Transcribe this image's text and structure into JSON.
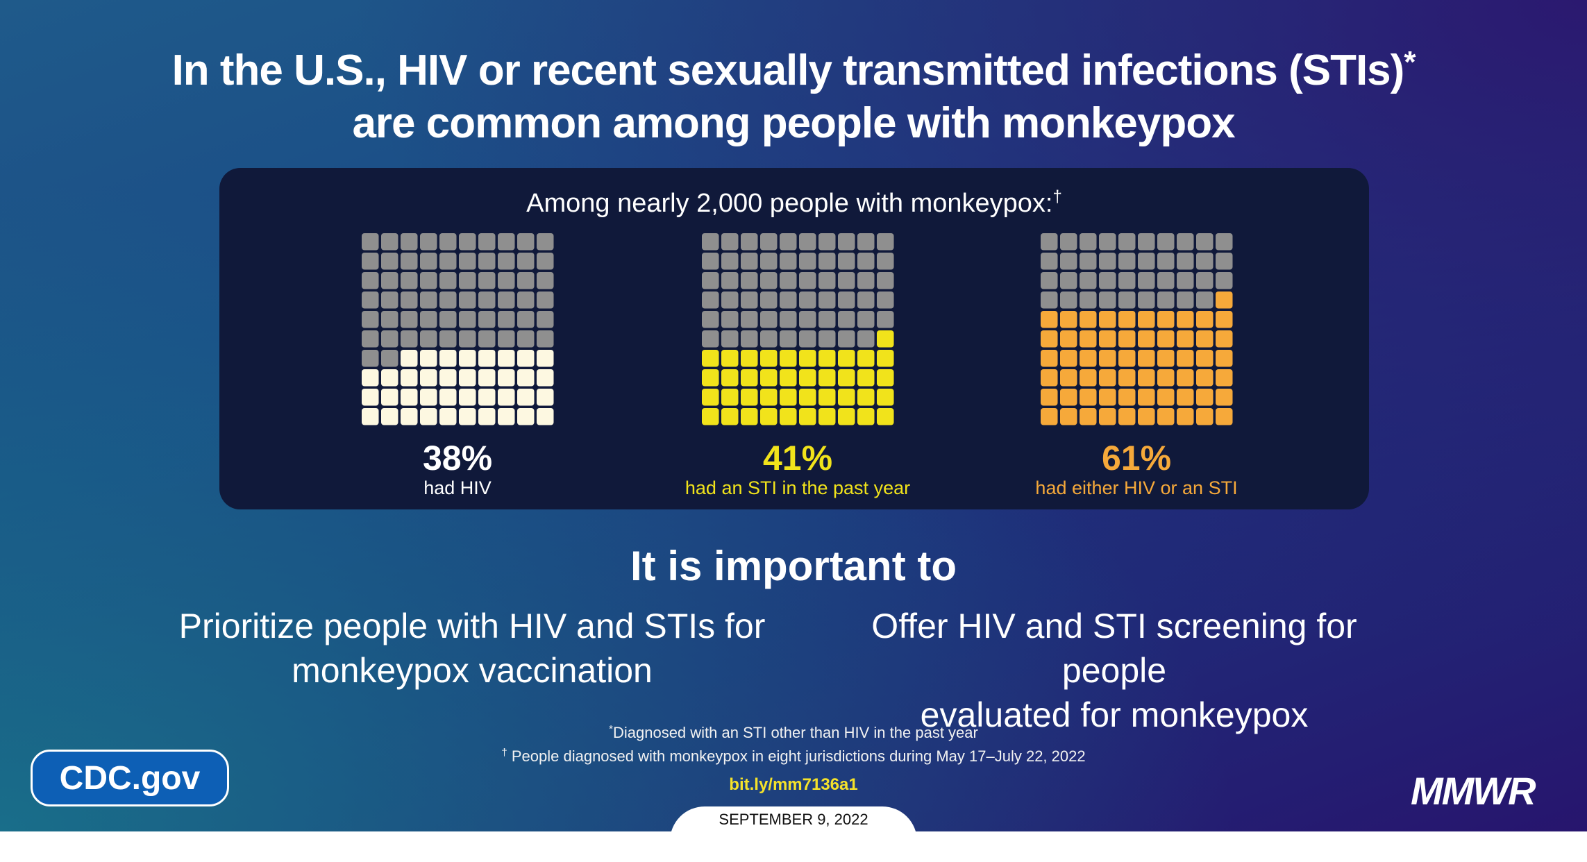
{
  "title": {
    "line1": "In the U.S., HIV or recent sexually transmitted infections (STIs)",
    "line1_mark": "*",
    "line2": "are common among people with monkeypox"
  },
  "panel": {
    "subtitle": "Among nearly 2,000 people with monkeypox:",
    "subtitle_mark": "†"
  },
  "chart_data": [
    {
      "type": "waffle",
      "grid": [
        10,
        10
      ],
      "value": 38,
      "label_value": "38%",
      "label": "had HIV",
      "fill_color": "#fdf8e1",
      "empty_color": "#8f8f8f",
      "text_color": "#ffffff"
    },
    {
      "type": "waffle",
      "grid": [
        10,
        10
      ],
      "value": 41,
      "label_value": "41%",
      "label": "had an STI in the past year",
      "fill_color": "#f1e31b",
      "empty_color": "#8f8f8f",
      "text_color": "#f1e31b"
    },
    {
      "type": "waffle",
      "grid": [
        10,
        10
      ],
      "value": 61,
      "label_value": "61%",
      "label": "had either HIV or an STI",
      "fill_color": "#f6a93a",
      "empty_color": "#8f8f8f",
      "text_color": "#f6a93a"
    }
  ],
  "important": {
    "heading": "It is important to",
    "rec1_line1": "Prioritize people with HIV and STIs for",
    "rec1_line2": "monkeypox vaccination",
    "rec2_line1": "Offer HIV and STI screening for people",
    "rec2_line2": "evaluated for monkeypox"
  },
  "footnotes": {
    "f1_mark": "*",
    "f1": "Diagnosed with an STI other than HIV in the past year",
    "f2_mark": "†",
    "f2": "People diagnosed with monkeypox in eight jurisdictions during May 17–July 22, 2022"
  },
  "link": "bit.ly/mm7136a1",
  "date": "SEPTEMBER 9, 2022",
  "cdc_label": "CDC.gov",
  "mmwr_label": "MMWR",
  "colors": {
    "panel": "#10193a",
    "cdc_blue": "#0d5fb5",
    "link_yellow": "#f5e22a"
  }
}
